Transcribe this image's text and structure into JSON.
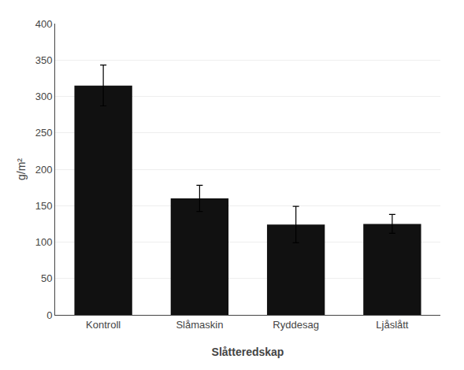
{
  "chart_data": {
    "type": "bar",
    "categories": [
      "Kontroll",
      "Slåmaskin",
      "Ryddesag",
      "Ljåslått"
    ],
    "values": [
      315,
      160,
      124,
      125
    ],
    "errors": [
      28,
      18,
      25,
      13
    ],
    "color": "#111111",
    "xlabel": "Slåtteredskap",
    "ylabel": "g/m²",
    "ylim": [
      0,
      400
    ],
    "yticks": [
      0,
      50,
      100,
      150,
      200,
      250,
      300,
      350,
      400
    ],
    "grid": true
  }
}
